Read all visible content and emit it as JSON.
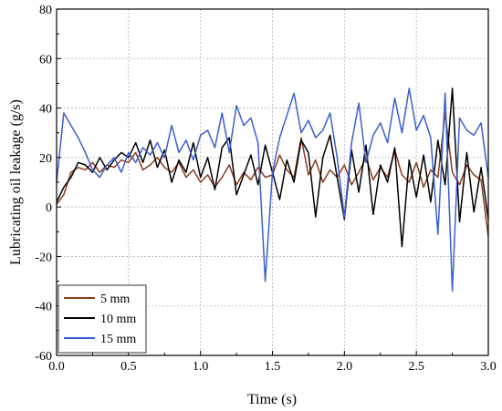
{
  "chart_data": {
    "type": "line",
    "xlabel": "Time (s)",
    "ylabel": "Lubricating oil leakage  (g/s)",
    "xlim": [
      0.0,
      3.0
    ],
    "ylim": [
      -60,
      80
    ],
    "xticks": [
      0.0,
      0.5,
      1.0,
      1.5,
      2.0,
      2.5,
      3.0
    ],
    "xtick_labels": [
      "0.0",
      "0.5",
      "1.0",
      "1.5",
      "2.0",
      "2.5",
      "3.0"
    ],
    "yticks": [
      -60,
      -40,
      -20,
      0,
      20,
      40,
      60,
      80
    ],
    "ytick_labels": [
      "-60",
      "-40",
      "-20",
      "0",
      "20",
      "40",
      "60",
      "80"
    ],
    "grid": true,
    "legend_position": "bottom-left",
    "series": [
      {
        "name": "5 mm",
        "color": "#8b3a1a",
        "points": [
          [
            0.0,
            1
          ],
          [
            0.05,
            5
          ],
          [
            0.1,
            14
          ],
          [
            0.15,
            16
          ],
          [
            0.2,
            15
          ],
          [
            0.25,
            18
          ],
          [
            0.3,
            14
          ],
          [
            0.35,
            17
          ],
          [
            0.4,
            16
          ],
          [
            0.45,
            19
          ],
          [
            0.5,
            18
          ],
          [
            0.55,
            22
          ],
          [
            0.6,
            15
          ],
          [
            0.65,
            17
          ],
          [
            0.7,
            20
          ],
          [
            0.75,
            16
          ],
          [
            0.8,
            14
          ],
          [
            0.85,
            18
          ],
          [
            0.9,
            12
          ],
          [
            0.95,
            15
          ],
          [
            1.0,
            10
          ],
          [
            1.05,
            13
          ],
          [
            1.1,
            8
          ],
          [
            1.15,
            12
          ],
          [
            1.2,
            17
          ],
          [
            1.25,
            9
          ],
          [
            1.3,
            14
          ],
          [
            1.35,
            11
          ],
          [
            1.4,
            16
          ],
          [
            1.45,
            12
          ],
          [
            1.5,
            13
          ],
          [
            1.55,
            21
          ],
          [
            1.6,
            15
          ],
          [
            1.65,
            12
          ],
          [
            1.7,
            28
          ],
          [
            1.75,
            13
          ],
          [
            1.8,
            19
          ],
          [
            1.85,
            10
          ],
          [
            1.9,
            15
          ],
          [
            1.95,
            12
          ],
          [
            2.0,
            17
          ],
          [
            2.05,
            9
          ],
          [
            2.1,
            14
          ],
          [
            2.15,
            20
          ],
          [
            2.2,
            11
          ],
          [
            2.25,
            16
          ],
          [
            2.3,
            12
          ],
          [
            2.35,
            23
          ],
          [
            2.4,
            13
          ],
          [
            2.45,
            10
          ],
          [
            2.5,
            18
          ],
          [
            2.55,
            8
          ],
          [
            2.6,
            15
          ],
          [
            2.65,
            12
          ],
          [
            2.7,
            38
          ],
          [
            2.75,
            14
          ],
          [
            2.8,
            9
          ],
          [
            2.85,
            17
          ],
          [
            2.9,
            13
          ],
          [
            2.95,
            11
          ],
          [
            3.0,
            -12
          ]
        ]
      },
      {
        "name": "10 mm",
        "color": "#000000",
        "points": [
          [
            0.0,
            2
          ],
          [
            0.05,
            8
          ],
          [
            0.1,
            12
          ],
          [
            0.15,
            18
          ],
          [
            0.2,
            17
          ],
          [
            0.25,
            14
          ],
          [
            0.3,
            20
          ],
          [
            0.35,
            15
          ],
          [
            0.4,
            19
          ],
          [
            0.45,
            22
          ],
          [
            0.5,
            20
          ],
          [
            0.55,
            26
          ],
          [
            0.6,
            18
          ],
          [
            0.65,
            27
          ],
          [
            0.7,
            16
          ],
          [
            0.75,
            23
          ],
          [
            0.8,
            10
          ],
          [
            0.85,
            19
          ],
          [
            0.9,
            14
          ],
          [
            0.95,
            26
          ],
          [
            1.0,
            12
          ],
          [
            1.05,
            20
          ],
          [
            1.1,
            7
          ],
          [
            1.15,
            24
          ],
          [
            1.2,
            28
          ],
          [
            1.25,
            5
          ],
          [
            1.3,
            13
          ],
          [
            1.35,
            21
          ],
          [
            1.4,
            9
          ],
          [
            1.45,
            25
          ],
          [
            1.5,
            14
          ],
          [
            1.55,
            3
          ],
          [
            1.6,
            19
          ],
          [
            1.65,
            10
          ],
          [
            1.7,
            27
          ],
          [
            1.75,
            22
          ],
          [
            1.8,
            -4
          ],
          [
            1.85,
            20
          ],
          [
            1.9,
            29
          ],
          [
            1.95,
            12
          ],
          [
            2.0,
            -5
          ],
          [
            2.05,
            23
          ],
          [
            2.1,
            6
          ],
          [
            2.15,
            25
          ],
          [
            2.2,
            -3
          ],
          [
            2.25,
            17
          ],
          [
            2.3,
            10
          ],
          [
            2.35,
            24
          ],
          [
            2.4,
            -16
          ],
          [
            2.45,
            19
          ],
          [
            2.5,
            4
          ],
          [
            2.55,
            21
          ],
          [
            2.6,
            2
          ],
          [
            2.65,
            27
          ],
          [
            2.7,
            9
          ],
          [
            2.75,
            48
          ],
          [
            2.8,
            -6
          ],
          [
            2.85,
            22
          ],
          [
            2.9,
            -2
          ],
          [
            2.95,
            16
          ],
          [
            3.0,
            -5
          ]
        ]
      },
      {
        "name": "15 mm",
        "color": "#3a5fd0",
        "points": [
          [
            0.0,
            10
          ],
          [
            0.05,
            38
          ],
          [
            0.1,
            33
          ],
          [
            0.15,
            28
          ],
          [
            0.2,
            22
          ],
          [
            0.25,
            15
          ],
          [
            0.3,
            12
          ],
          [
            0.35,
            17
          ],
          [
            0.4,
            20
          ],
          [
            0.45,
            14
          ],
          [
            0.5,
            22
          ],
          [
            0.55,
            18
          ],
          [
            0.6,
            24
          ],
          [
            0.65,
            21
          ],
          [
            0.7,
            26
          ],
          [
            0.75,
            20
          ],
          [
            0.8,
            33
          ],
          [
            0.85,
            22
          ],
          [
            0.9,
            27
          ],
          [
            0.95,
            19
          ],
          [
            1.0,
            29
          ],
          [
            1.05,
            31
          ],
          [
            1.1,
            24
          ],
          [
            1.15,
            38
          ],
          [
            1.2,
            22
          ],
          [
            1.25,
            41
          ],
          [
            1.3,
            33
          ],
          [
            1.35,
            36
          ],
          [
            1.4,
            26
          ],
          [
            1.45,
            -30
          ],
          [
            1.5,
            14
          ],
          [
            1.55,
            28
          ],
          [
            1.6,
            37
          ],
          [
            1.65,
            46
          ],
          [
            1.7,
            30
          ],
          [
            1.75,
            35
          ],
          [
            1.8,
            28
          ],
          [
            1.85,
            31
          ],
          [
            1.9,
            38
          ],
          [
            1.95,
            20
          ],
          [
            2.0,
            -4
          ],
          [
            2.05,
            26
          ],
          [
            2.1,
            42
          ],
          [
            2.15,
            18
          ],
          [
            2.2,
            29
          ],
          [
            2.25,
            34
          ],
          [
            2.3,
            26
          ],
          [
            2.35,
            44
          ],
          [
            2.4,
            30
          ],
          [
            2.45,
            48
          ],
          [
            2.5,
            31
          ],
          [
            2.55,
            37
          ],
          [
            2.6,
            28
          ],
          [
            2.65,
            -11
          ],
          [
            2.7,
            46
          ],
          [
            2.75,
            -34
          ],
          [
            2.8,
            36
          ],
          [
            2.85,
            31
          ],
          [
            2.9,
            29
          ],
          [
            2.95,
            34
          ],
          [
            3.0,
            12
          ]
        ]
      }
    ]
  }
}
